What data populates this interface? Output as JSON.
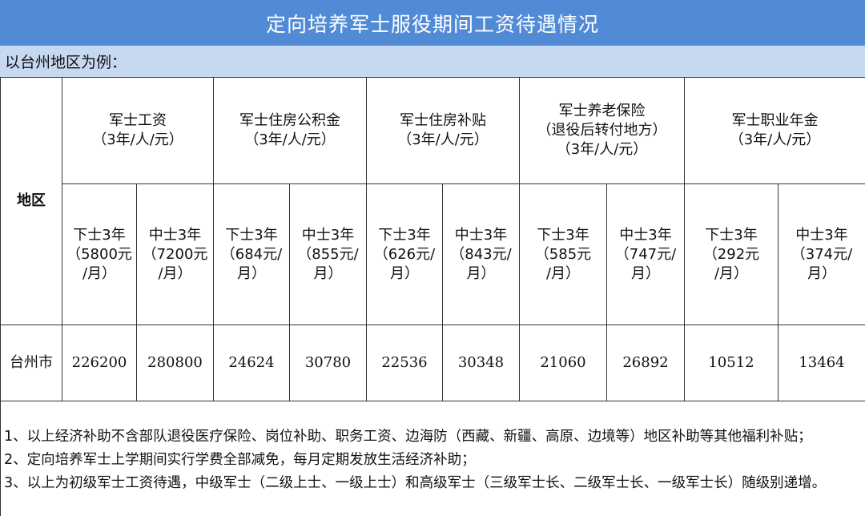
{
  "title": "定向培养军士服役期间工资待遇情况",
  "subtitle": "以台州地区为例：",
  "region_header": "地区",
  "groups": [
    {
      "name": "军士工资",
      "lines": [
        "（3年/人/元）"
      ]
    },
    {
      "name": "军士住房公积金",
      "lines": [
        "（3年/人/元）"
      ]
    },
    {
      "name": "军士住房补贴",
      "lines": [
        "（3年/人/元）"
      ]
    },
    {
      "name": "军士养老保险",
      "lines": [
        "（退役后转付地方）",
        "（3年/人/元）"
      ]
    },
    {
      "name": "军士职业年金",
      "lines": [
        "（3年/人/元）"
      ]
    }
  ],
  "subheaders": [
    [
      "下士3年",
      "（5800元",
      "/月）"
    ],
    [
      "中士3年",
      "（7200元",
      "/月）"
    ],
    [
      "下士3年",
      "（684元/",
      "月）"
    ],
    [
      "中士3年",
      "（855元/",
      "月）"
    ],
    [
      "下士3年",
      "（626元/",
      "月）"
    ],
    [
      "中士3年",
      "（843元/",
      "月）"
    ],
    [
      "下士3年",
      "（585元",
      "/月）"
    ],
    [
      "中士3年",
      "（747元/",
      "月）"
    ],
    [
      "下士3年",
      "（292元",
      "/月）"
    ],
    [
      "中士3年",
      "（374元/",
      "月）"
    ]
  ],
  "row": {
    "region": "台州市",
    "values": [
      "226200",
      "280800",
      "24624",
      "30780",
      "22536",
      "30348",
      "21060",
      "26892",
      "10512",
      "13464"
    ]
  },
  "notes": [
    "1、以上经济补助不含部队退役医疗保险、岗位补助、职务工资、边海防（西藏、新疆、高原、边境等）地区补助等其他福利补贴；",
    "2、定向培养军士上学期间实行学费全部减免，每月定期发放生活经济补助；",
    "3、以上为初级军士工资待遇，中级军士（二级上士、一级上士）和高级军士（三级军士长、二级军士长、一级军士长）随级别递增。"
  ],
  "colors": {
    "title_bg": "#528bd5",
    "subtitle_bg": "#c6d9f0"
  }
}
